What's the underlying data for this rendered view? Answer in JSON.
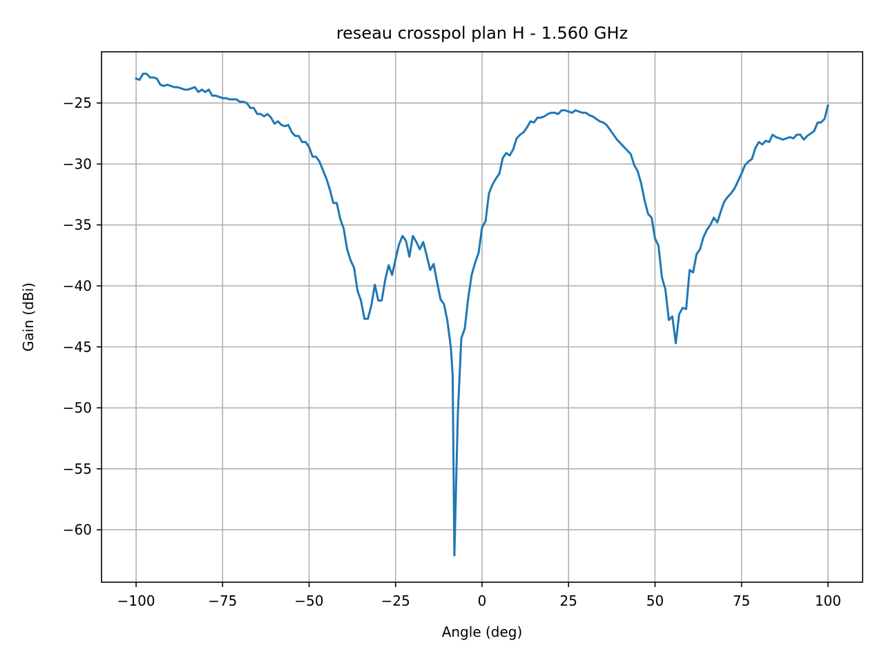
{
  "chart_data": {
    "type": "line",
    "title": "reseau crosspol plan H - 1.560 GHz",
    "xlabel": "Angle (deg)",
    "ylabel": "Gain (dBi)",
    "xlim": [
      -110,
      110
    ],
    "ylim": [
      -64.3,
      -20.8
    ],
    "grid": true,
    "x_ticks": [
      -100,
      -75,
      -50,
      -25,
      0,
      25,
      50,
      75,
      100
    ],
    "x_tick_labels": [
      "−100",
      "−75",
      "−50",
      "−25",
      "0",
      "25",
      "50",
      "75",
      "100"
    ],
    "y_ticks": [
      -25,
      -30,
      -35,
      -40,
      -45,
      -50,
      -55,
      -60
    ],
    "y_tick_labels": [
      "−25",
      "−30",
      "−35",
      "−40",
      "−45",
      "−50",
      "−55",
      "−60"
    ],
    "series": [
      {
        "color": "#1f77b4",
        "points": [
          [
            -100,
            -23.0
          ],
          [
            -99,
            -23.1
          ],
          [
            -98,
            -22.6
          ],
          [
            -97,
            -22.6
          ],
          [
            -96,
            -22.9
          ],
          [
            -95,
            -22.9
          ],
          [
            -94,
            -23.0
          ],
          [
            -93,
            -23.5
          ],
          [
            -92,
            -23.6
          ],
          [
            -91,
            -23.5
          ],
          [
            -90,
            -23.6
          ],
          [
            -89,
            -23.7
          ],
          [
            -88,
            -23.7
          ],
          [
            -87,
            -23.8
          ],
          [
            -86,
            -23.9
          ],
          [
            -85,
            -23.9
          ],
          [
            -84,
            -23.8
          ],
          [
            -83,
            -23.7
          ],
          [
            -82,
            -24.1
          ],
          [
            -81,
            -23.9
          ],
          [
            -80,
            -24.1
          ],
          [
            -79,
            -23.9
          ],
          [
            -78,
            -24.4
          ],
          [
            -77,
            -24.4
          ],
          [
            -76,
            -24.5
          ],
          [
            -75,
            -24.6
          ],
          [
            -74,
            -24.6
          ],
          [
            -73,
            -24.7
          ],
          [
            -72,
            -24.7
          ],
          [
            -71,
            -24.7
          ],
          [
            -70,
            -24.9
          ],
          [
            -69,
            -24.9
          ],
          [
            -68,
            -25.0
          ],
          [
            -67,
            -25.4
          ],
          [
            -66,
            -25.4
          ],
          [
            -65,
            -25.9
          ],
          [
            -64,
            -25.9
          ],
          [
            -63,
            -26.1
          ],
          [
            -62,
            -25.9
          ],
          [
            -61,
            -26.2
          ],
          [
            -60,
            -26.7
          ],
          [
            -59,
            -26.5
          ],
          [
            -58,
            -26.8
          ],
          [
            -57,
            -26.9
          ],
          [
            -56,
            -26.8
          ],
          [
            -55,
            -27.4
          ],
          [
            -54,
            -27.7
          ],
          [
            -53,
            -27.7
          ],
          [
            -52,
            -28.2
          ],
          [
            -51,
            -28.2
          ],
          [
            -50,
            -28.6
          ],
          [
            -49,
            -29.4
          ],
          [
            -48,
            -29.4
          ],
          [
            -47,
            -29.8
          ],
          [
            -46,
            -30.5
          ],
          [
            -45,
            -31.2
          ],
          [
            -44,
            -32.1
          ],
          [
            -43,
            -33.2
          ],
          [
            -42,
            -33.2
          ],
          [
            -41,
            -34.5
          ],
          [
            -40,
            -35.3
          ],
          [
            -39,
            -37.0
          ],
          [
            -38,
            -37.9
          ],
          [
            -37,
            -38.5
          ],
          [
            -36,
            -40.4
          ],
          [
            -35,
            -41.2
          ],
          [
            -34,
            -42.7
          ],
          [
            -33,
            -42.7
          ],
          [
            -32,
            -41.6
          ],
          [
            -31,
            -39.9
          ],
          [
            -30,
            -41.2
          ],
          [
            -29,
            -41.2
          ],
          [
            -28,
            -39.5
          ],
          [
            -27,
            -38.3
          ],
          [
            -26,
            -39.1
          ],
          [
            -25,
            -37.8
          ],
          [
            -24,
            -36.6
          ],
          [
            -23,
            -35.9
          ],
          [
            -22,
            -36.3
          ],
          [
            -21,
            -37.6
          ],
          [
            -20,
            -35.9
          ],
          [
            -19,
            -36.4
          ],
          [
            -18,
            -37.0
          ],
          [
            -17,
            -36.4
          ],
          [
            -16,
            -37.5
          ],
          [
            -15,
            -38.7
          ],
          [
            -14,
            -38.2
          ],
          [
            -13,
            -39.7
          ],
          [
            -12,
            -41.1
          ],
          [
            -11,
            -41.5
          ],
          [
            -10,
            -42.9
          ],
          [
            -9,
            -45.1
          ],
          [
            -8.5,
            -47.3
          ],
          [
            -8,
            -62.1
          ],
          [
            -7,
            -50.5
          ],
          [
            -6,
            -44.3
          ],
          [
            -5,
            -43.5
          ],
          [
            -4,
            -41.0
          ],
          [
            -3,
            -39.1
          ],
          [
            -2,
            -38.1
          ],
          [
            -1,
            -37.3
          ],
          [
            0,
            -35.2
          ],
          [
            1,
            -34.7
          ],
          [
            2,
            -32.4
          ],
          [
            3,
            -31.7
          ],
          [
            4,
            -31.2
          ],
          [
            5,
            -30.8
          ],
          [
            6,
            -29.5
          ],
          [
            7,
            -29.1
          ],
          [
            8,
            -29.3
          ],
          [
            9,
            -28.8
          ],
          [
            10,
            -27.9
          ],
          [
            11,
            -27.6
          ],
          [
            12,
            -27.4
          ],
          [
            13,
            -27.0
          ],
          [
            14,
            -26.5
          ],
          [
            15,
            -26.6
          ],
          [
            16,
            -26.2
          ],
          [
            17,
            -26.2
          ],
          [
            18,
            -26.1
          ],
          [
            19,
            -25.9
          ],
          [
            20,
            -25.8
          ],
          [
            21,
            -25.8
          ],
          [
            22,
            -25.9
          ],
          [
            23,
            -25.6
          ],
          [
            24,
            -25.6
          ],
          [
            25,
            -25.7
          ],
          [
            26,
            -25.8
          ],
          [
            27,
            -25.6
          ],
          [
            28,
            -25.7
          ],
          [
            29,
            -25.8
          ],
          [
            30,
            -25.8
          ],
          [
            31,
            -26.0
          ],
          [
            32,
            -26.1
          ],
          [
            33,
            -26.3
          ],
          [
            34,
            -26.5
          ],
          [
            35,
            -26.6
          ],
          [
            36,
            -26.8
          ],
          [
            37,
            -27.2
          ],
          [
            38,
            -27.6
          ],
          [
            39,
            -28.0
          ],
          [
            40,
            -28.3
          ],
          [
            41,
            -28.6
          ],
          [
            42,
            -28.9
          ],
          [
            43,
            -29.2
          ],
          [
            44,
            -30.1
          ],
          [
            45,
            -30.6
          ],
          [
            46,
            -31.6
          ],
          [
            47,
            -33.0
          ],
          [
            48,
            -34.1
          ],
          [
            49,
            -34.4
          ],
          [
            50,
            -36.1
          ],
          [
            51,
            -36.7
          ],
          [
            52,
            -39.3
          ],
          [
            53,
            -40.3
          ],
          [
            54,
            -42.8
          ],
          [
            55,
            -42.5
          ],
          [
            56,
            -44.7
          ],
          [
            57,
            -42.3
          ],
          [
            58,
            -41.8
          ],
          [
            59,
            -41.9
          ],
          [
            60,
            -38.7
          ],
          [
            61,
            -38.9
          ],
          [
            62,
            -37.4
          ],
          [
            63,
            -37.0
          ],
          [
            64,
            -36.0
          ],
          [
            65,
            -35.4
          ],
          [
            66,
            -35.0
          ],
          [
            67,
            -34.4
          ],
          [
            68,
            -34.8
          ],
          [
            69,
            -33.9
          ],
          [
            70,
            -33.1
          ],
          [
            71,
            -32.7
          ],
          [
            72,
            -32.4
          ],
          [
            73,
            -32.0
          ],
          [
            74,
            -31.4
          ],
          [
            75,
            -30.8
          ],
          [
            76,
            -30.1
          ],
          [
            77,
            -29.8
          ],
          [
            78,
            -29.6
          ],
          [
            79,
            -28.7
          ],
          [
            80,
            -28.2
          ],
          [
            81,
            -28.4
          ],
          [
            82,
            -28.1
          ],
          [
            83,
            -28.2
          ],
          [
            84,
            -27.6
          ],
          [
            85,
            -27.8
          ],
          [
            86,
            -27.9
          ],
          [
            87,
            -28.0
          ],
          [
            88,
            -27.9
          ],
          [
            89,
            -27.8
          ],
          [
            90,
            -27.9
          ],
          [
            91,
            -27.6
          ],
          [
            92,
            -27.6
          ],
          [
            93,
            -28.0
          ],
          [
            94,
            -27.7
          ],
          [
            95,
            -27.5
          ],
          [
            96,
            -27.3
          ],
          [
            97,
            -26.6
          ],
          [
            98,
            -26.6
          ],
          [
            99,
            -26.3
          ],
          [
            100,
            -25.2
          ]
        ]
      }
    ]
  }
}
